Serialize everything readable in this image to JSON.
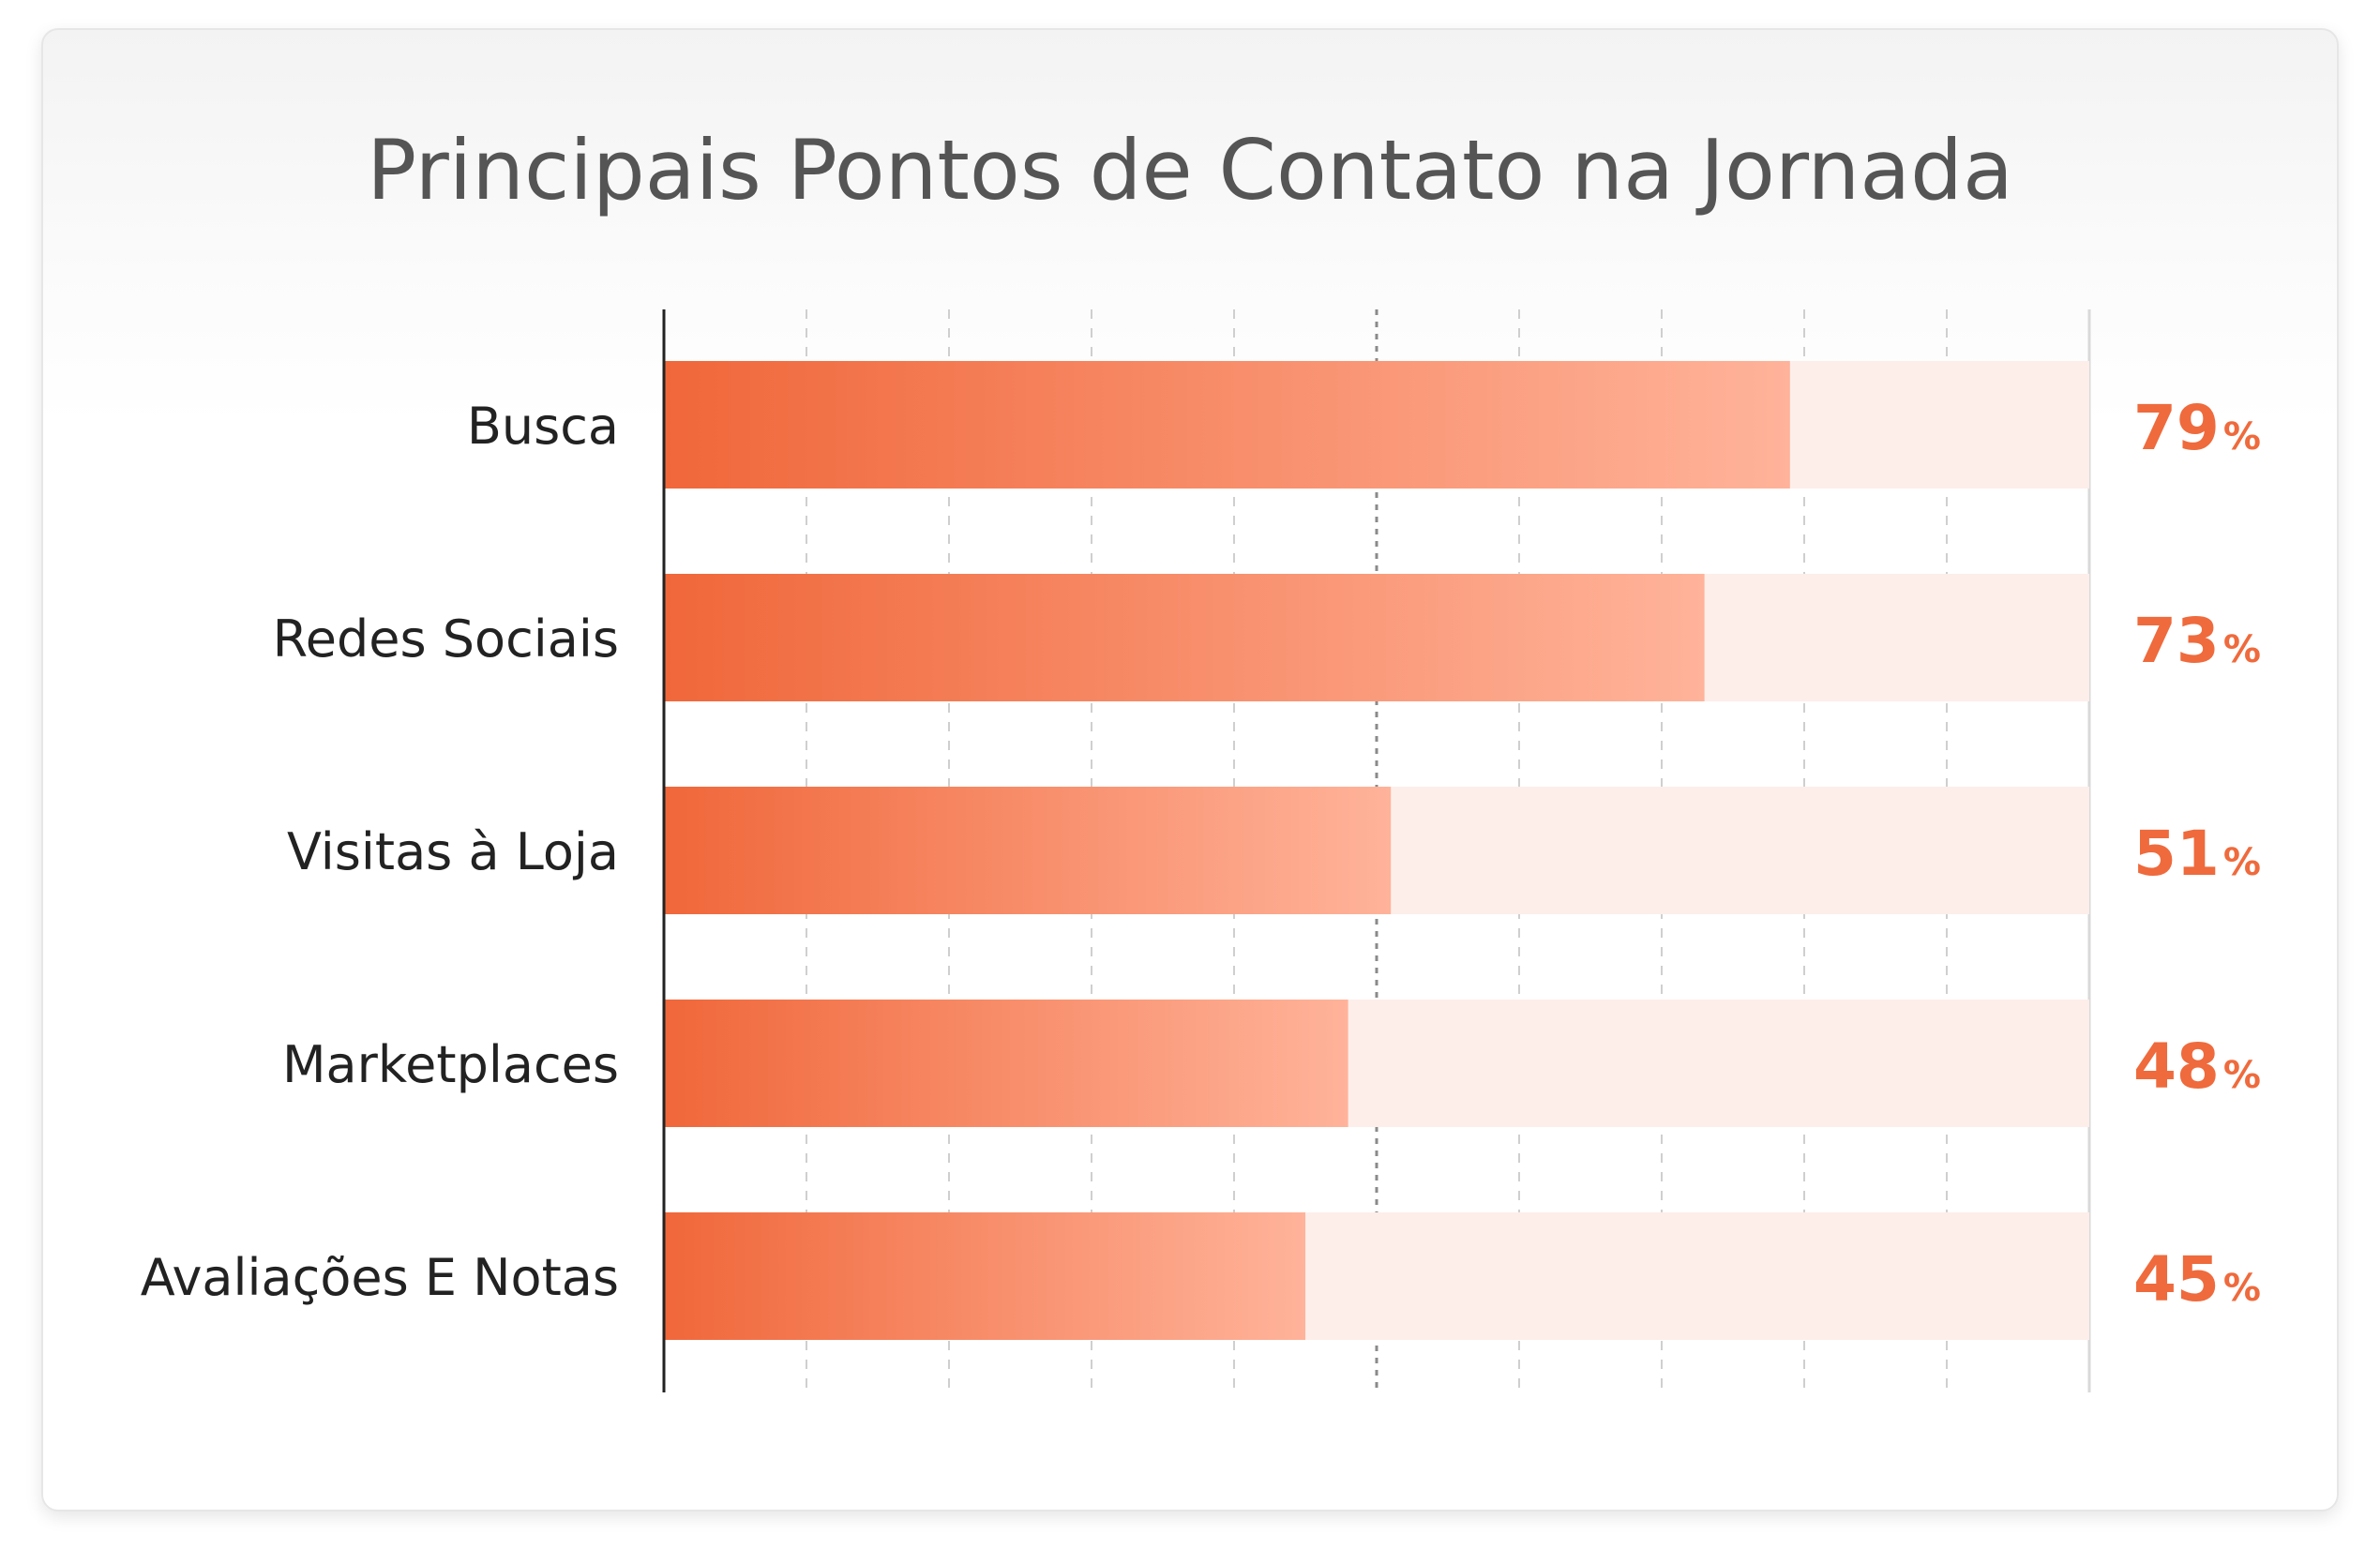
{
  "chart_data": {
    "type": "bar",
    "orientation": "horizontal",
    "title": "Principais Pontos de Contato na Jornada",
    "categories": [
      "Busca",
      "Redes Sociais",
      "Visitas à Loja",
      "Marketplaces",
      "Avaliações E Notas"
    ],
    "values": [
      79,
      73,
      51,
      48,
      45
    ],
    "unit": "%",
    "xlim": [
      0,
      100
    ],
    "grid": true,
    "colors": {
      "bar_start": "#f0673a",
      "bar_end": "#ffb39a",
      "track": "#fdeeea",
      "value_label": "#ef6a3c",
      "category_label": "#222222",
      "grid": "#cfcfcf",
      "axis": "#222222"
    }
  }
}
